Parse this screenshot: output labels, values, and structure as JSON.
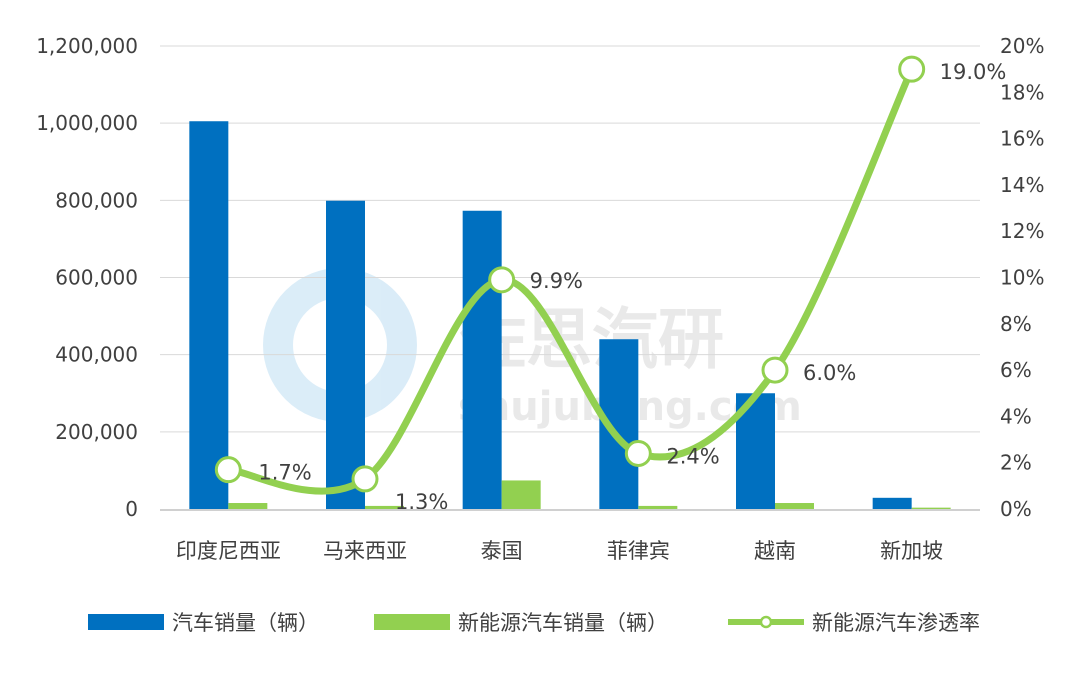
{
  "chart_data": {
    "type": "bar+line",
    "categories": [
      "印度尼西亚",
      "马来西亚",
      "泰国",
      "菲律宾",
      "越南",
      "新加坡"
    ],
    "series": [
      {
        "name": "汽车销量（辆）",
        "type": "bar",
        "axis": "left",
        "color": "#0070C0",
        "values": [
          1005000,
          799000,
          773000,
          440000,
          300000,
          29000
        ]
      },
      {
        "name": "新能源汽车销量（辆）",
        "type": "bar",
        "axis": "left",
        "color": "#92D050",
        "values": [
          15500,
          8000,
          74000,
          8000,
          15500,
          3500
        ]
      },
      {
        "name": "新能源汽车渗透率",
        "type": "line",
        "axis": "right",
        "color": "#92D050",
        "values": [
          1.7,
          1.3,
          9.9,
          2.4,
          6.0,
          19.0
        ],
        "labels": [
          "1.7%",
          "1.3%",
          "9.9%",
          "2.4%",
          "6.0%",
          "19.0%"
        ]
      }
    ],
    "left_axis": {
      "ylim": [
        0,
        1200000
      ],
      "ticks": [
        "0",
        "200,000",
        "400,000",
        "600,000",
        "800,000",
        "1,000,000",
        "1,200,000"
      ]
    },
    "right_axis": {
      "ylim": [
        0,
        20
      ],
      "ticks": [
        "0%",
        "2%",
        "4%",
        "6%",
        "8%",
        "10%",
        "12%",
        "14%",
        "16%",
        "18%",
        "20%"
      ]
    },
    "grid": true,
    "legend_position": "bottom",
    "watermark": {
      "text": "佐思汽研",
      "url": "shujubang.com"
    }
  }
}
